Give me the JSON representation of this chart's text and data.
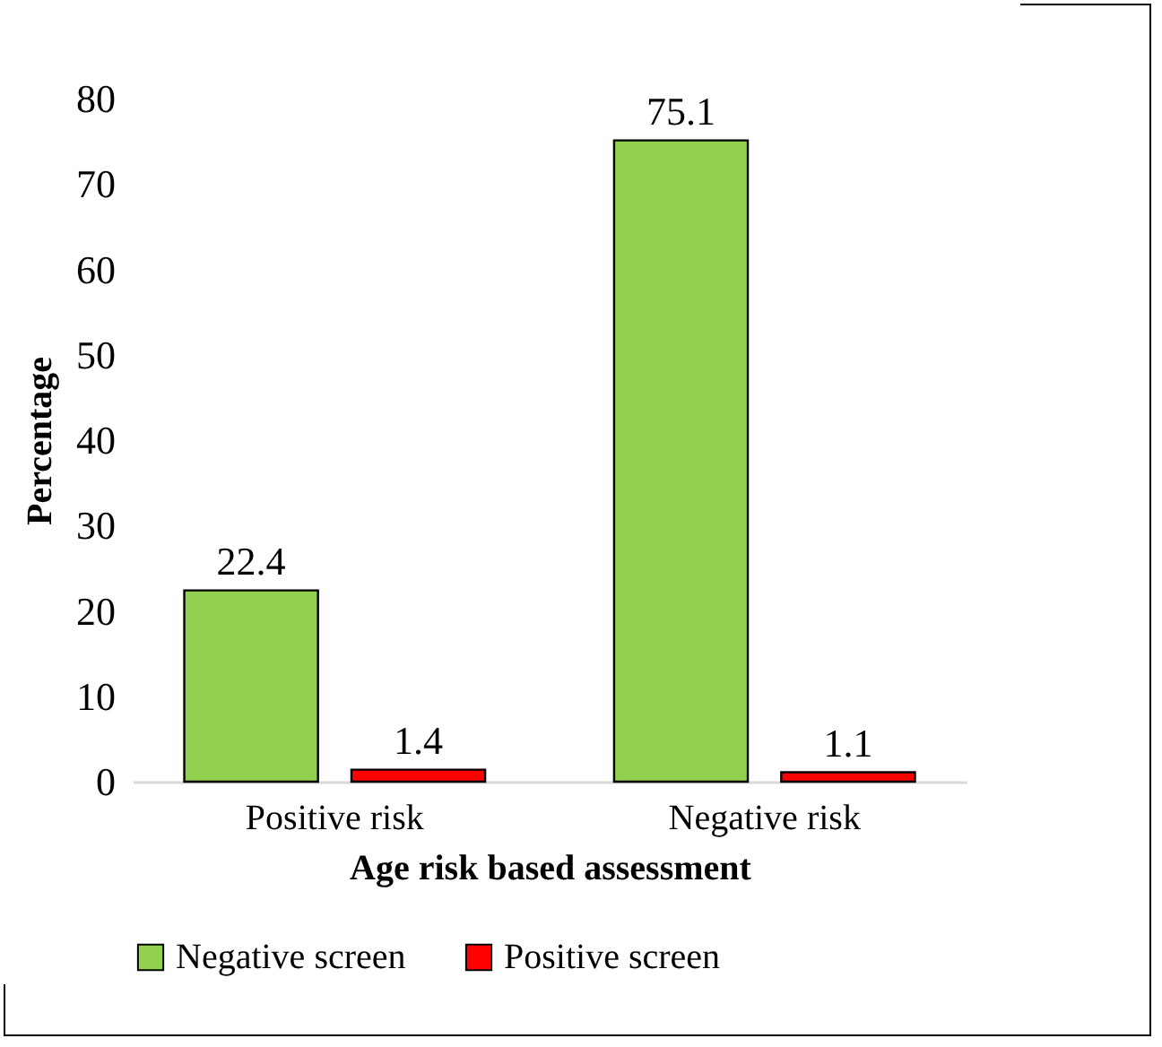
{
  "chart_data": {
    "type": "bar",
    "xlabel": "Age risk based assessment",
    "ylabel": "Percentage",
    "categories": [
      "Positive risk",
      "Negative risk"
    ],
    "series": [
      {
        "name": "Negative screen",
        "color": "#92d050",
        "values": [
          22.4,
          75.1
        ]
      },
      {
        "name": "Positive screen",
        "color": "#ff0000",
        "values": [
          1.4,
          1.1
        ]
      }
    ],
    "ylim": [
      0,
      80
    ],
    "yticks": [
      0,
      10,
      20,
      30,
      40,
      50,
      60,
      70,
      80
    ],
    "grid": false,
    "legend": "bottom",
    "data_labels": true
  }
}
